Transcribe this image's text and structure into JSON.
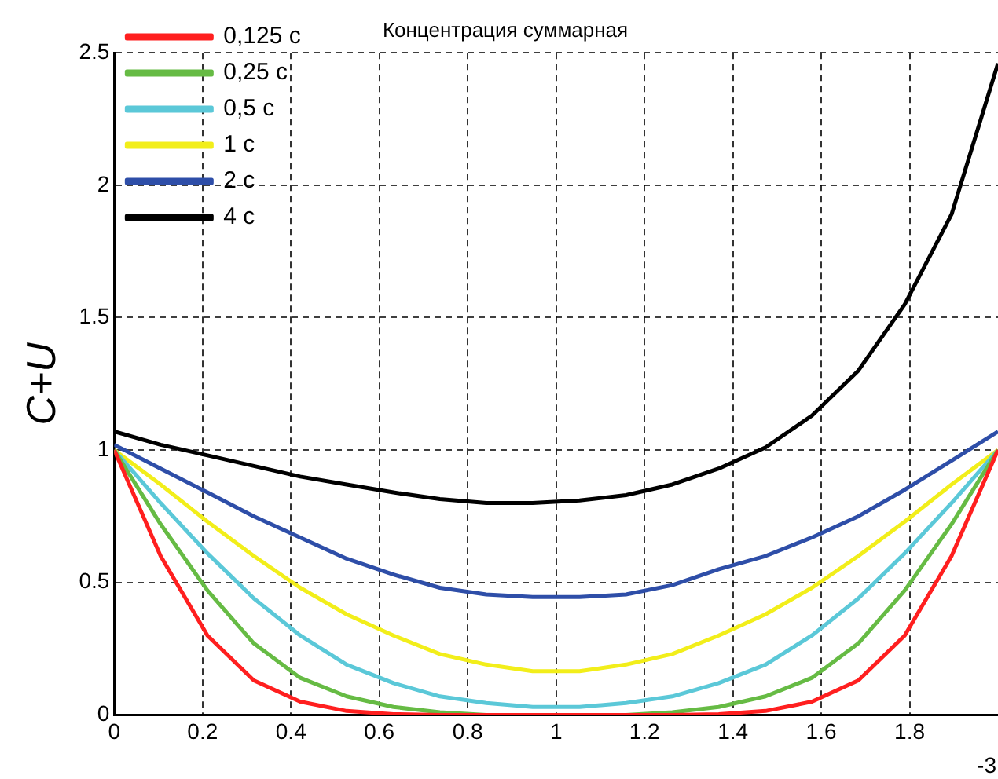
{
  "chart_data": {
    "type": "line",
    "title": "Концентрация суммарная",
    "ylabel": "C+U",
    "x": [
      0,
      0.105,
      0.211,
      0.316,
      0.421,
      0.526,
      0.632,
      0.737,
      0.842,
      0.947,
      1.053,
      1.158,
      1.263,
      1.368,
      1.474,
      1.579,
      1.684,
      1.789,
      1.895,
      2.0
    ],
    "series": [
      {
        "name": "0,125 с",
        "color": "#ff1f1f",
        "values": [
          1,
          0.6,
          0.3,
          0.13,
          0.05,
          0.015,
          0.003,
          0,
          0,
          0,
          0,
          0,
          0,
          0.003,
          0.015,
          0.05,
          0.13,
          0.3,
          0.6,
          1
        ]
      },
      {
        "name": "0,25 с",
        "color": "#66bb44",
        "values": [
          1,
          0.72,
          0.47,
          0.27,
          0.14,
          0.07,
          0.03,
          0.01,
          0,
          0,
          0,
          0,
          0.01,
          0.03,
          0.07,
          0.14,
          0.27,
          0.47,
          0.72,
          1
        ]
      },
      {
        "name": "0,5 с",
        "color": "#5bc8d8",
        "values": [
          1,
          0.8,
          0.61,
          0.44,
          0.3,
          0.19,
          0.12,
          0.07,
          0.045,
          0.03,
          0.03,
          0.045,
          0.07,
          0.12,
          0.19,
          0.3,
          0.44,
          0.61,
          0.8,
          1
        ]
      },
      {
        "name": "1 с",
        "color": "#f2ee1a",
        "values": [
          1,
          0.87,
          0.73,
          0.6,
          0.48,
          0.38,
          0.3,
          0.23,
          0.19,
          0.165,
          0.165,
          0.19,
          0.23,
          0.3,
          0.38,
          0.48,
          0.6,
          0.73,
          0.87,
          1
        ]
      },
      {
        "name": "2 с",
        "color": "#2e4ea8",
        "values": [
          1.02,
          0.93,
          0.84,
          0.75,
          0.67,
          0.59,
          0.53,
          0.48,
          0.455,
          0.445,
          0.445,
          0.455,
          0.49,
          0.55,
          0.6,
          0.67,
          0.75,
          0.85,
          0.96,
          1.07
        ]
      },
      {
        "name": "4 с",
        "color": "#000000",
        "values": [
          1.07,
          1.02,
          0.98,
          0.94,
          0.9,
          0.87,
          0.84,
          0.815,
          0.8,
          0.8,
          0.81,
          0.83,
          0.87,
          0.93,
          1.01,
          1.13,
          1.3,
          1.55,
          1.89,
          2.46
        ]
      }
    ],
    "xlim": [
      0,
      2
    ],
    "xticks": [
      0,
      0.2,
      0.4,
      0.6,
      0.8,
      1,
      1.2,
      1.4,
      1.6,
      1.8
    ],
    "ylim": [
      0,
      2.5
    ],
    "yticks": [
      0,
      0.5,
      1,
      1.5,
      2,
      2.5
    ],
    "grid": true,
    "legend": "top",
    "line_style": "solid",
    "marker": "none",
    "annotations": [
      "-3"
    ]
  }
}
